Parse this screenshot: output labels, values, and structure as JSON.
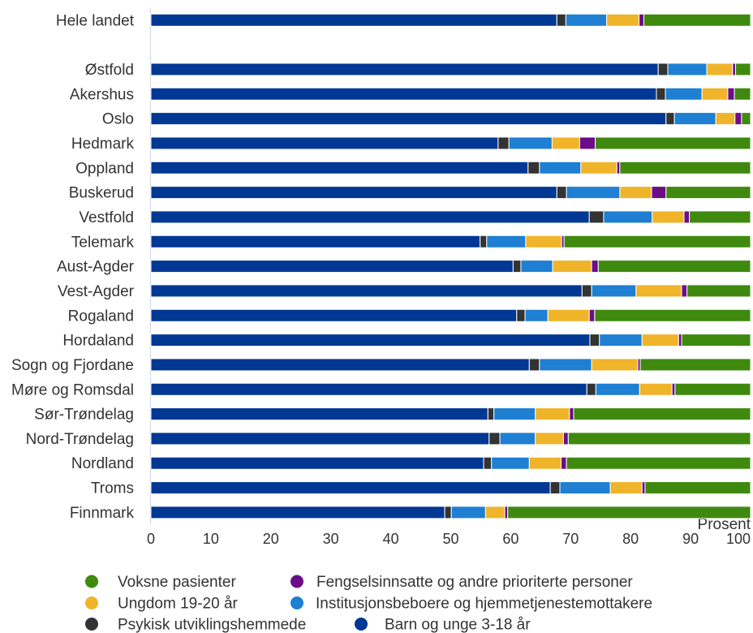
{
  "chart_data": {
    "type": "bar",
    "orientation": "horizontal",
    "stacked": true,
    "categories": [
      "Hele landet",
      "Østfold",
      "Akershus",
      "Oslo",
      "Hedmark",
      "Oppland",
      "Buskerud",
      "Vestfold",
      "Telemark",
      "Aust-Agder",
      "Vest-Agder",
      "Rogaland",
      "Hordaland",
      "Sogn og Fjordane",
      "Møre og Romsdal",
      "Sør-Trøndelag",
      "Nord-Trøndelag",
      "Nordland",
      "Troms",
      "Finnmark"
    ],
    "series": [
      {
        "name": "Barn og unge 3-18 år",
        "color": "#013894",
        "values": [
          67.7,
          84.6,
          84.3,
          85.9,
          57.9,
          62.9,
          67.7,
          73.1,
          54.9,
          60.4,
          71.9,
          61.0,
          73.2,
          63.1,
          72.7,
          56.2,
          56.4,
          55.5,
          66.6,
          49.0
        ]
      },
      {
        "name": "Psykisk utviklingshemmede",
        "color": "#333333",
        "values": [
          1.5,
          1.6,
          1.5,
          1.4,
          1.8,
          1.9,
          1.6,
          2.4,
          1.1,
          1.3,
          1.6,
          1.4,
          1.6,
          1.7,
          1.5,
          1.0,
          1.8,
          1.3,
          1.6,
          1.1
        ]
      },
      {
        "name": "Institusjonsbeboere og hjemmetjenestemottakere",
        "color": "#1e7fd3",
        "values": [
          6.8,
          6.5,
          6.1,
          6.9,
          7.2,
          6.9,
          8.9,
          8.1,
          6.5,
          5.3,
          7.4,
          3.8,
          7.1,
          8.7,
          7.3,
          6.9,
          5.9,
          6.3,
          8.4,
          5.7
        ]
      },
      {
        "name": "Ungdom 19-20 år",
        "color": "#f0b42a",
        "values": [
          5.4,
          4.3,
          4.3,
          3.2,
          4.6,
          6.0,
          5.3,
          5.3,
          6.0,
          6.5,
          7.6,
          6.9,
          6.1,
          7.7,
          5.4,
          5.7,
          4.7,
          5.3,
          5.3,
          3.2
        ]
      },
      {
        "name": "Fengselsinnsatte og andre prioriterte personer",
        "color": "#6b0d88",
        "values": [
          0.8,
          0.5,
          1.1,
          1.1,
          2.6,
          0.5,
          2.4,
          0.9,
          0.4,
          1.1,
          0.9,
          0.9,
          0.5,
          0.4,
          0.5,
          0.7,
          0.8,
          0.9,
          0.5,
          0.5
        ]
      },
      {
        "name": "Voksne pasienter",
        "color": "#3f8a0e",
        "values": [
          17.8,
          2.5,
          2.7,
          1.5,
          25.9,
          21.8,
          14.1,
          10.2,
          31.1,
          25.4,
          10.6,
          26.0,
          11.5,
          18.4,
          12.6,
          29.5,
          30.4,
          30.7,
          17.6,
          40.5
        ]
      }
    ],
    "xlabel": "Prosent",
    "xlim": [
      0,
      100
    ],
    "xticks": [
      0,
      10,
      20,
      30,
      40,
      50,
      60,
      70,
      80,
      90,
      100
    ],
    "grid": false,
    "legend_position": "bottom"
  }
}
